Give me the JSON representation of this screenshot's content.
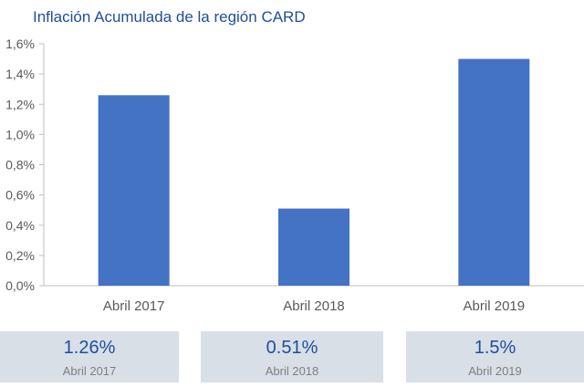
{
  "title": "Inflación Acumulada de la región CARD",
  "colors": {
    "bar": "#4472c4",
    "title": "#1f4e9c",
    "card_bg": "#d9dfe6",
    "axis_text": "#595959"
  },
  "chart_data": {
    "type": "bar",
    "title": "Inflación Acumulada de la región CARD",
    "categories": [
      "Abril 2017",
      "Abril 2018",
      "Abril 2019"
    ],
    "values": [
      1.26,
      0.51,
      1.5
    ],
    "ylim": [
      0,
      1.6
    ],
    "yticks": [
      0,
      0.2,
      0.4,
      0.6,
      0.8,
      1.0,
      1.2,
      1.4,
      1.6
    ],
    "ytick_labels": [
      "0,0%",
      "0,2%",
      "0,4%",
      "0,6%",
      "0,8%",
      "1,0%",
      "1,2%",
      "1,4%",
      "1,6%"
    ],
    "grid": false,
    "xlabel": "",
    "ylabel": ""
  },
  "cards": [
    {
      "value": "1.26%",
      "label": "Abril 2017"
    },
    {
      "value": "0.51%",
      "label": "Abril 2018"
    },
    {
      "value": "1.5%",
      "label": "Abril 2019"
    }
  ]
}
